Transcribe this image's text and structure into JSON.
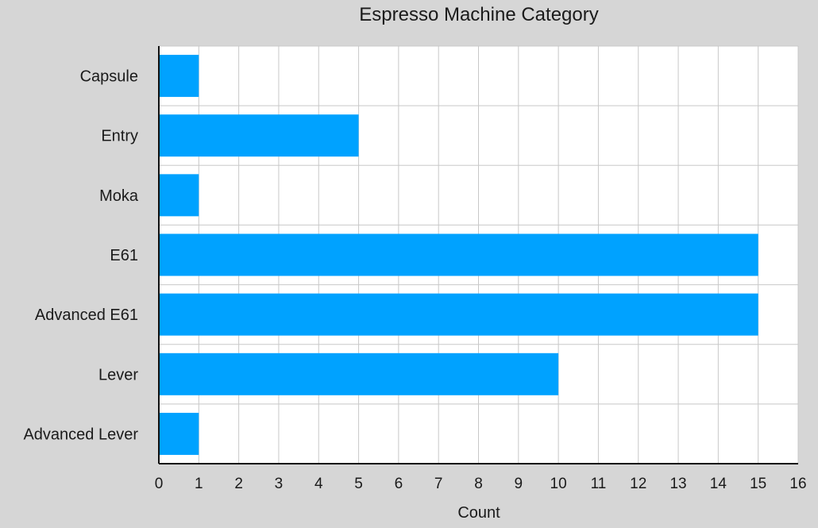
{
  "chart_data": {
    "type": "bar",
    "orientation": "horizontal",
    "title": "Espresso Machine Category",
    "xlabel": "Count",
    "ylabel": "",
    "categories": [
      "Capsule",
      "Entry",
      "Moka",
      "E61",
      "Advanced E61",
      "Lever",
      "Advanced Lever"
    ],
    "values": [
      1,
      5,
      1,
      15,
      15,
      10,
      1
    ],
    "xlim": [
      0,
      16
    ],
    "xticks": [
      "0",
      "1",
      "2",
      "3",
      "4",
      "5",
      "6",
      "7",
      "8",
      "9",
      "10",
      "11",
      "12",
      "13",
      "14",
      "15",
      "16"
    ],
    "grid": true,
    "legend": "none",
    "colors": {
      "bar": "#00a2ff",
      "plot_background": "#ffffff",
      "page_background": "#d6d6d6",
      "grid": "#c8c8c8",
      "axis": "#111111"
    }
  }
}
